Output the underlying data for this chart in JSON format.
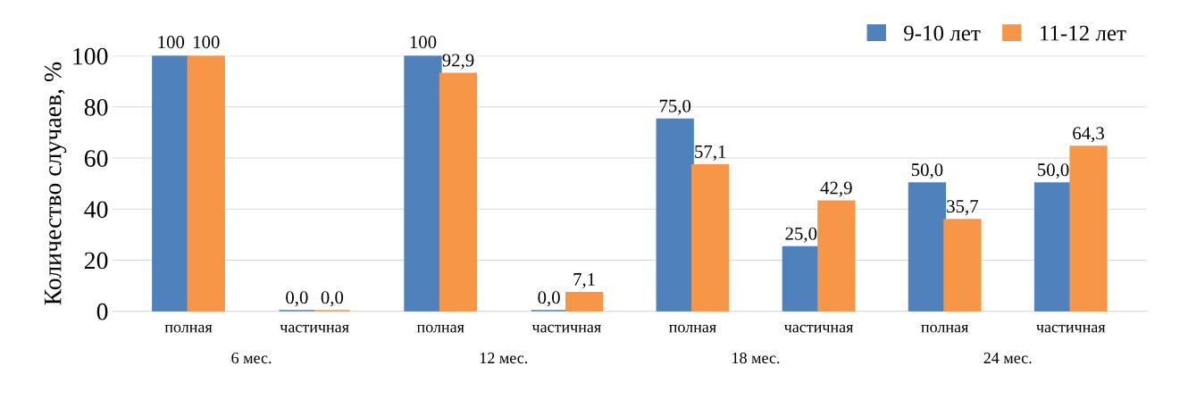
{
  "chart_data": {
    "type": "bar",
    "ylabel": "Количество случаев, %",
    "categories": [
      "полная",
      "частичная",
      "полная",
      "частичная",
      "полная",
      "частичная",
      "полная",
      "частичная"
    ],
    "annotations": [
      "6 мес.",
      "12 мес.",
      "18 мес.",
      "24 мес."
    ],
    "series": [
      {
        "name": "9-10 лет",
        "color": "#4f81bd",
        "values": [
          100,
          0,
          100,
          0,
          75,
          25,
          50,
          50
        ],
        "value_labels": [
          "100",
          "0,0",
          "100",
          "0,0",
          "75,0",
          "25,0",
          "50,0",
          "50,0"
        ]
      },
      {
        "name": "11-12 лет",
        "color": "#f79646",
        "values": [
          100,
          0,
          92.9,
          7.1,
          57.1,
          42.9,
          35.7,
          64.3
        ],
        "value_labels": [
          "100",
          "0,0",
          "92,9",
          "7,1",
          "57,1",
          "42,9",
          "35,7",
          "64,3"
        ]
      }
    ],
    "ylim": [
      0,
      100
    ],
    "yticks": [
      0,
      20,
      40,
      60,
      80,
      100
    ],
    "grid": "y",
    "legend": "top right"
  }
}
